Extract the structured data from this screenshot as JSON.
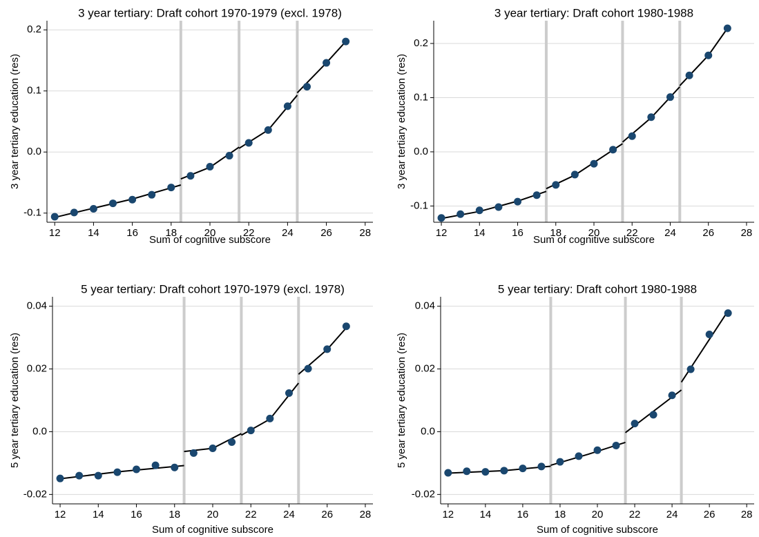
{
  "chart_data": [
    {
      "type": "scatter",
      "title": "3 year tertiary: Draft cohort 1970-1979 (excl. 1978)",
      "x_label": "Sum of cognitive subscore",
      "y_label": "3 year tertiary education (res)",
      "x": [
        12,
        13,
        14,
        15,
        16,
        17,
        18,
        19,
        20,
        21,
        22,
        23,
        24,
        25,
        26,
        27
      ],
      "values": [
        -0.106,
        -0.099,
        -0.093,
        -0.084,
        -0.078,
        -0.07,
        -0.058,
        -0.039,
        -0.024,
        -0.006,
        0.015,
        0.036,
        0.075,
        0.107,
        0.146,
        0.181
      ],
      "fit": {
        "x": [
          12,
          14,
          16,
          18.5,
          null,
          18.5,
          20,
          21.5,
          null,
          21.5,
          23,
          24.5,
          null,
          24.5,
          26,
          27
        ],
        "values": [
          -0.107,
          -0.092,
          -0.077,
          -0.054,
          null,
          -0.044,
          -0.025,
          0.008,
          null,
          0.006,
          0.036,
          0.093,
          null,
          0.097,
          0.146,
          0.181
        ]
      },
      "cutoffs": [
        18.5,
        21.5,
        24.5
      ],
      "xlim": [
        11.6,
        28.4
      ],
      "ylim": [
        -0.115,
        0.215
      ],
      "xticks": [
        12,
        14,
        16,
        18,
        20,
        22,
        24,
        26,
        28
      ],
      "yticks": [
        -0.1,
        {
          "value": 0,
          "label": "0.0"
        },
        0.1,
        0.2
      ],
      "grid": true,
      "color": "#1a476f",
      "fit_color": "#000000",
      "cutoff_color": "#cccccc"
    },
    {
      "type": "scatter",
      "title": "3 year tertiary: Draft cohort 1980-1988",
      "x_label": "Sum of cognitive subscore",
      "y_label": "3 year tertiary education (res)",
      "x": [
        12,
        13,
        14,
        15,
        16,
        17,
        18,
        19,
        20,
        21,
        22,
        23,
        24,
        25,
        26,
        27
      ],
      "values": [
        -0.122,
        -0.115,
        -0.108,
        -0.102,
        -0.092,
        -0.08,
        -0.061,
        -0.042,
        -0.022,
        0.004,
        0.029,
        0.064,
        0.101,
        0.141,
        0.178,
        0.228
      ],
      "fit": {
        "x": [
          12,
          14,
          16,
          17.5,
          null,
          17.5,
          19,
          21.5,
          null,
          21.5,
          23,
          24.5,
          null,
          24.5,
          26,
          27
        ],
        "values": [
          -0.123,
          -0.11,
          -0.091,
          -0.073,
          null,
          -0.068,
          -0.043,
          0.015,
          null,
          0.018,
          0.063,
          0.12,
          null,
          0.122,
          0.178,
          0.228
        ]
      },
      "cutoffs": [
        17.5,
        21.5,
        24.5
      ],
      "xlim": [
        11.6,
        28.4
      ],
      "ylim": [
        -0.13,
        0.242
      ],
      "xticks": [
        12,
        14,
        16,
        18,
        20,
        22,
        24,
        26,
        28
      ],
      "yticks": [
        -0.1,
        {
          "value": 0,
          "label": "0.0"
        },
        0.1,
        0.2
      ],
      "grid": true,
      "color": "#1a476f",
      "fit_color": "#000000",
      "cutoff_color": "#cccccc"
    },
    {
      "type": "scatter",
      "title": "5 year tertiary: Draft cohort 1970-1979 (excl. 1978)",
      "x_label": "Sum of cognitive subscore",
      "y_label": "5 year tertiary education (res)",
      "x": [
        12,
        13,
        14,
        15,
        16,
        17,
        18,
        19,
        20,
        21,
        22,
        23,
        24,
        25,
        26,
        27
      ],
      "values": [
        -0.0149,
        -0.014,
        -0.014,
        -0.0129,
        -0.012,
        -0.0107,
        -0.0114,
        -0.0068,
        -0.0053,
        -0.0033,
        0.0004,
        0.0042,
        0.0123,
        0.0201,
        0.0263,
        0.0336
      ],
      "fit": {
        "x": [
          12,
          15,
          18.5,
          null,
          18.5,
          20,
          21.5,
          null,
          21.5,
          23,
          24.5,
          null,
          24.5,
          26,
          27
        ],
        "values": [
          -0.015,
          -0.0128,
          -0.0108,
          null,
          -0.0063,
          -0.0053,
          -0.0006,
          null,
          -0.0011,
          0.004,
          0.0155,
          null,
          0.0183,
          0.0262,
          0.0331
        ]
      },
      "cutoffs": [
        18.5,
        21.5,
        24.5
      ],
      "xlim": [
        11.6,
        28.4
      ],
      "ylim": [
        -0.023,
        0.043
      ],
      "xticks": [
        12,
        14,
        16,
        18,
        20,
        22,
        24,
        26,
        28
      ],
      "yticks": [
        -0.02,
        {
          "value": 0,
          "label": "0.0"
        },
        0.02,
        0.04
      ],
      "grid": true,
      "color": "#1a476f",
      "fit_color": "#000000",
      "cutoff_color": "#cccccc"
    },
    {
      "type": "scatter",
      "title": "5 year tertiary: Draft cohort 1980-1988",
      "x_label": "Sum of cognitive subscore",
      "y_label": "5 year tertiary education (res)",
      "x": [
        12,
        13,
        14,
        15,
        16,
        17,
        18,
        19,
        20,
        21,
        22,
        23,
        24,
        25,
        26,
        27
      ],
      "values": [
        -0.0131,
        -0.0126,
        -0.0128,
        -0.0124,
        -0.0117,
        -0.0111,
        -0.0096,
        -0.0078,
        -0.0059,
        -0.0044,
        0.0026,
        0.0054,
        0.0116,
        0.0199,
        0.031,
        0.0378
      ],
      "fit": {
        "x": [
          12,
          15,
          17.5,
          null,
          17.5,
          19.5,
          21.5,
          null,
          21.5,
          24.5,
          null,
          24.5,
          27
        ],
        "values": [
          -0.0132,
          -0.0124,
          -0.011,
          null,
          -0.0107,
          -0.0072,
          -0.0034,
          null,
          -0.0003,
          0.0133,
          null,
          0.0158,
          0.0385
        ]
      },
      "cutoffs": [
        17.5,
        21.5,
        24.5
      ],
      "xlim": [
        11.6,
        28.4
      ],
      "ylim": [
        -0.023,
        0.043
      ],
      "xticks": [
        12,
        14,
        16,
        18,
        20,
        22,
        24,
        26,
        28
      ],
      "yticks": [
        -0.02,
        {
          "value": 0,
          "label": "0.0"
        },
        0.02,
        0.04
      ],
      "grid": true,
      "color": "#1a476f",
      "fit_color": "#000000",
      "cutoff_color": "#cccccc"
    }
  ]
}
